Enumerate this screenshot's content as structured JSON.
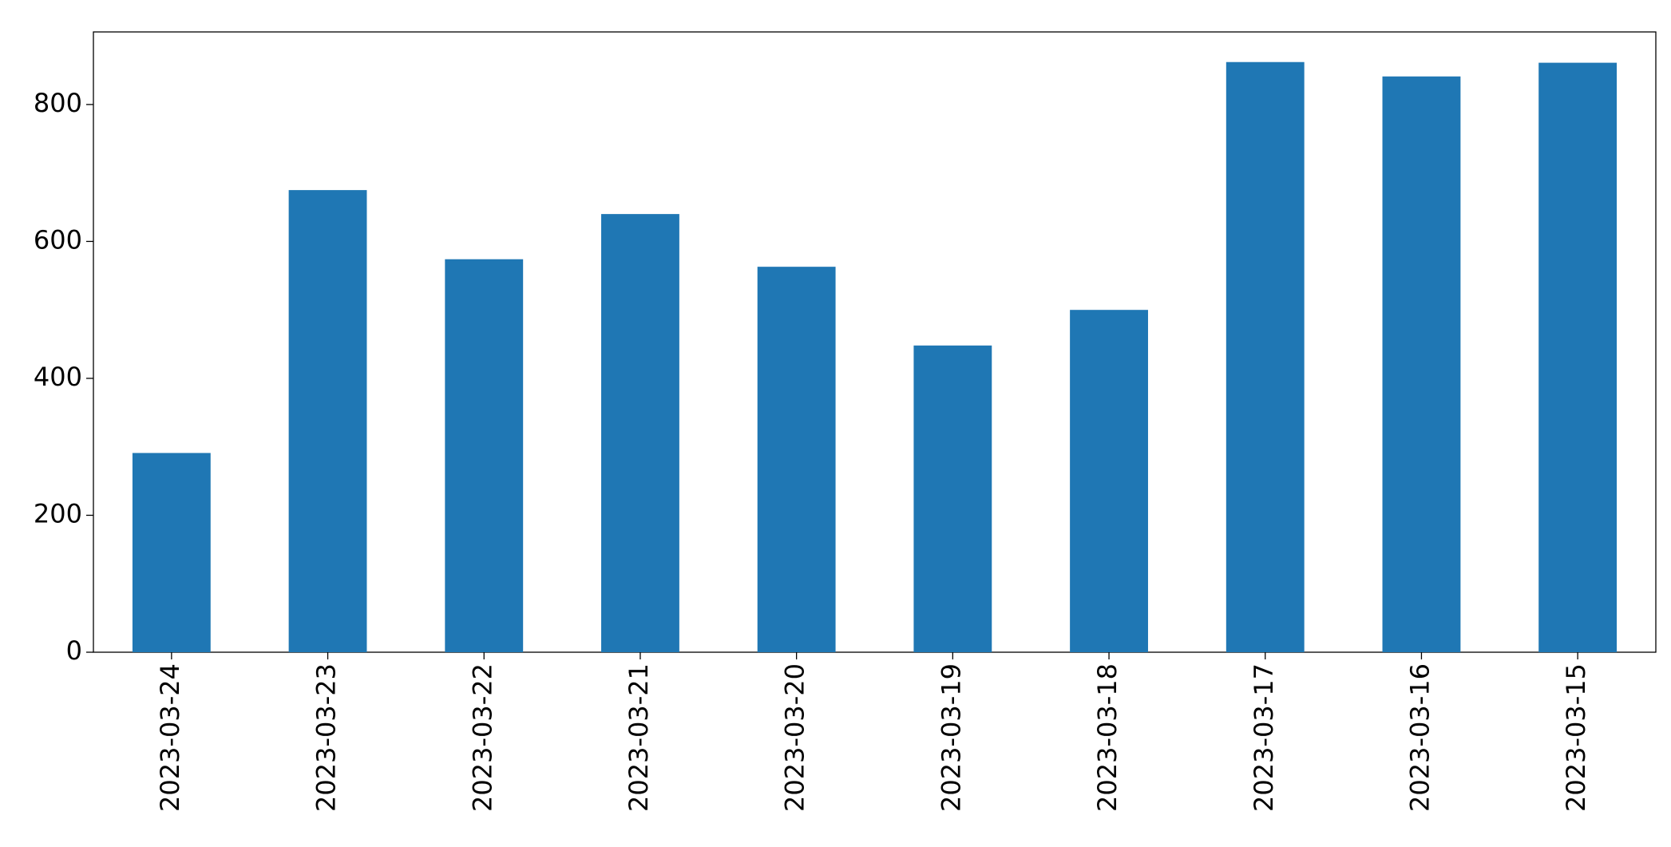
{
  "chart_data": {
    "type": "bar",
    "categories": [
      "2023-03-24",
      "2023-03-23",
      "2023-03-22",
      "2023-03-21",
      "2023-03-20",
      "2023-03-19",
      "2023-03-18",
      "2023-03-17",
      "2023-03-16",
      "2023-03-15"
    ],
    "values": [
      291,
      675,
      574,
      640,
      563,
      448,
      500,
      862,
      841,
      861
    ],
    "color": "#1f77b4",
    "ylim": [
      0,
      906
    ],
    "yticks": [
      0,
      200,
      400,
      600,
      800
    ],
    "grid": false
  }
}
